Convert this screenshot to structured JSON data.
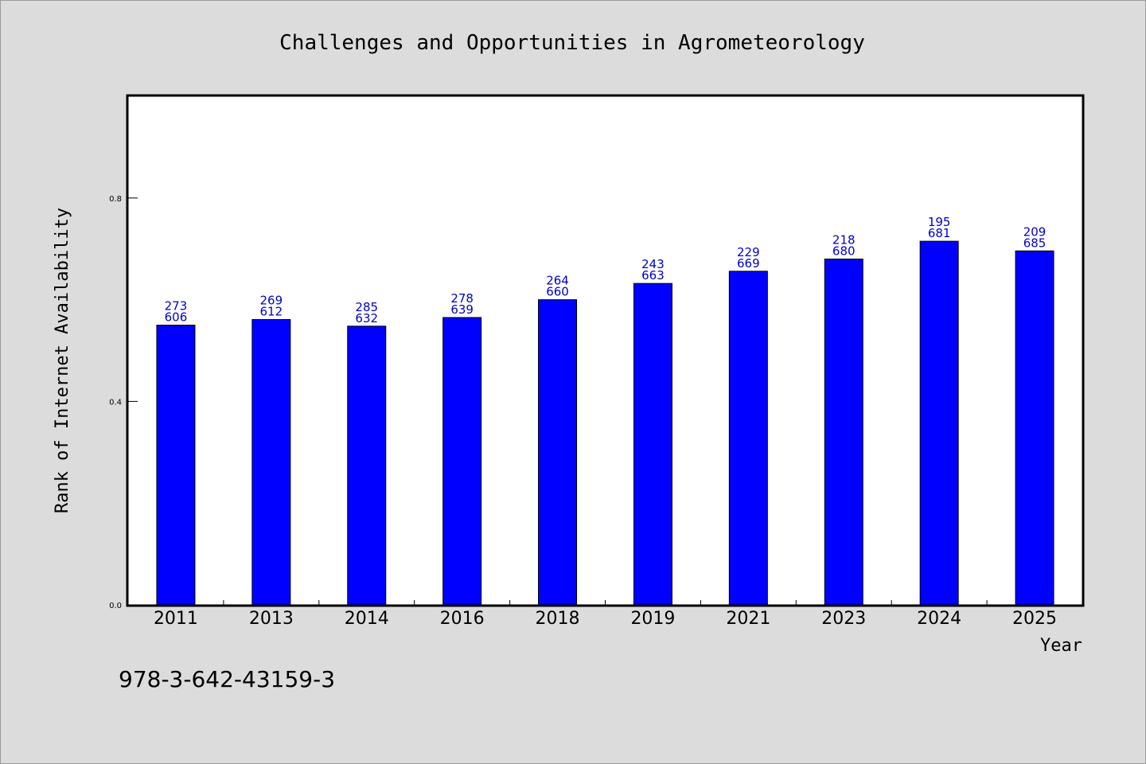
{
  "chart_data": {
    "type": "bar",
    "title": "Challenges and Opportunities in Agrometeorology",
    "xlabel": "Year",
    "ylabel": "Rank of Internet Availability",
    "categories": [
      "2011",
      "2013",
      "2014",
      "2016",
      "2018",
      "2019",
      "2021",
      "2023",
      "2024",
      "2025"
    ],
    "series": [
      {
        "values": [
          0.55,
          0.561,
          0.548,
          0.565,
          0.6,
          0.632,
          0.656,
          0.68,
          0.715,
          0.696
        ],
        "labels_top": [
          "273",
          "269",
          "285",
          "278",
          "264",
          "243",
          "229",
          "218",
          "195",
          "209"
        ],
        "labels_bottom": [
          "606",
          "612",
          "632",
          "639",
          "660",
          "663",
          "669",
          "680",
          "681",
          "685"
        ]
      }
    ],
    "ylim": [
      0,
      1.0
    ],
    "yticks": [
      "0.0",
      "0.4",
      "0.8"
    ],
    "ytick_values": [
      0.0,
      0.4,
      0.8
    ],
    "grid": false,
    "bar_color": "#0000ff",
    "label_color": "#0000cc"
  },
  "footnote": "978-3-642-43159-3"
}
